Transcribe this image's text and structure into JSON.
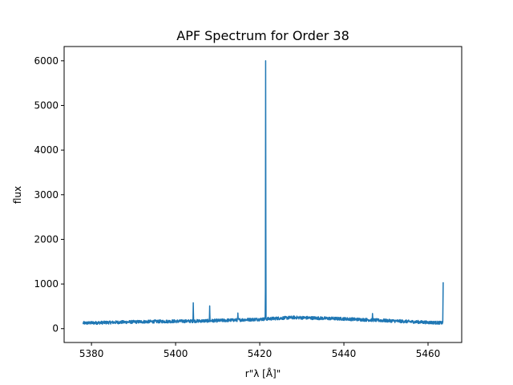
{
  "chart_data": {
    "type": "line",
    "title": "APF Spectrum for Order 38",
    "xlabel": "r\"λ [Å]\"",
    "ylabel": "flux",
    "xlim": [
      5373.5,
      5468.0
    ],
    "ylim": [
      -310,
      6320
    ],
    "xticks": [
      5380,
      5400,
      5420,
      5440,
      5460
    ],
    "yticks": [
      0,
      1000,
      2000,
      3000,
      4000,
      5000,
      6000
    ],
    "grid": false,
    "legend": "none",
    "series": [
      {
        "color": "#1f77b4",
        "baseline": {
          "x": [
            5378.0,
            5385.0,
            5392.0,
            5400.0,
            5405.0,
            5410.0,
            5415.0,
            5420.0,
            5425.0,
            5428.0,
            5432.0,
            5436.0,
            5440.0,
            5445.0,
            5450.0,
            5455.0,
            5460.0,
            5463.5
          ],
          "y": [
            125,
            140,
            155,
            165,
            170,
            180,
            195,
            210,
            235,
            250,
            240,
            230,
            220,
            200,
            180,
            160,
            140,
            130
          ]
        },
        "noise_amplitude": 35,
        "peaks": [
          {
            "x": 5404.2,
            "y": 580
          },
          {
            "x": 5408.1,
            "y": 510
          },
          {
            "x": 5414.8,
            "y": 350
          },
          {
            "x": 5421.4,
            "y": 6000
          },
          {
            "x": 5446.8,
            "y": 340
          },
          {
            "x": 5463.6,
            "y": 1040
          }
        ]
      }
    ]
  }
}
